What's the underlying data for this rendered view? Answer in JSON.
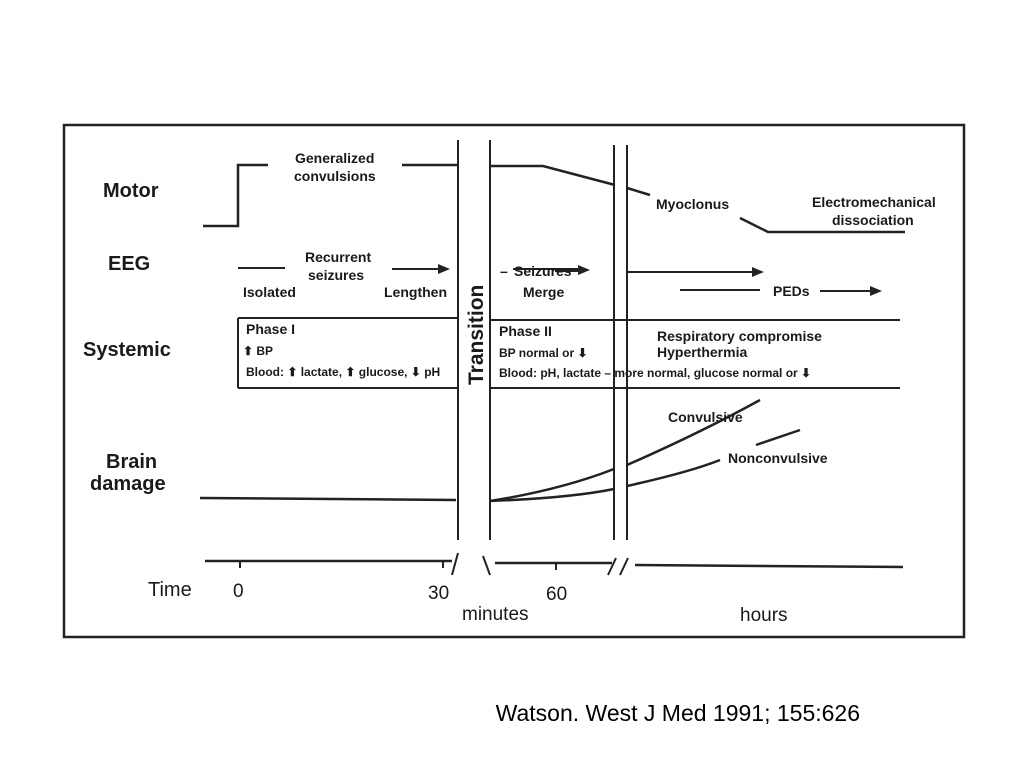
{
  "rows": {
    "motor": "Motor",
    "eeg": "EEG",
    "systemic": "Systemic",
    "brain_1": "Brain",
    "brain_2": "damage",
    "time": "Time"
  },
  "transition": "Transition",
  "motor": {
    "generalized_1": "Generalized",
    "generalized_2": "convulsions",
    "myoclonus": "Myoclonus",
    "electro_1": "Electromechanical",
    "electro_2": "dissociation"
  },
  "eeg": {
    "recurrent_1": "Recurrent",
    "recurrent_2": "seizures",
    "isolated": "Isolated",
    "lengthen": "Lengthen",
    "seizures": "Seizures",
    "merge": "Merge",
    "peds": "PEDs"
  },
  "systemic": {
    "phase1": "Phase I",
    "phase1_bp": "⬆ BP",
    "phase1_blood": "Blood: ⬆ lactate, ⬆ glucose, ⬇ pH",
    "phase2": "Phase II",
    "phase2_bp": "BP normal or ⬇",
    "phase2_blood": "Blood: pH, lactate – more normal, glucose normal or ⬇",
    "resp": "Respiratory compromise",
    "hyper": "Hyperthermia"
  },
  "brain": {
    "convulsive": "Convulsive",
    "nonconvulsive": "Nonconvulsive"
  },
  "time": {
    "t0": "0",
    "t30": "30",
    "t60": "60",
    "minutes": "minutes",
    "hours": "hours"
  },
  "citation": "Watson. West J Med 1991; 155:626"
}
